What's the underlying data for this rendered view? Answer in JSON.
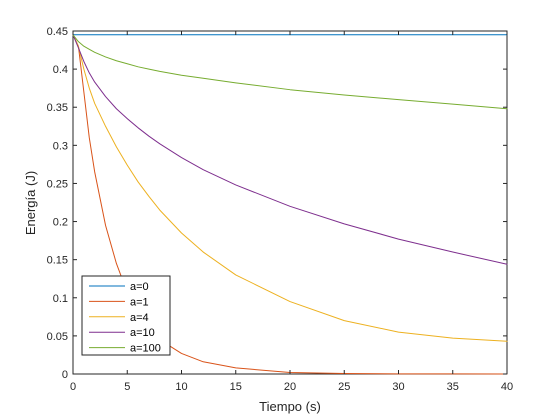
{
  "chart_data": {
    "type": "line",
    "title": "",
    "xlabel": "Tiempo (s)",
    "ylabel": "Energía (J)",
    "xlim": [
      0,
      40
    ],
    "ylim": [
      0,
      0.45
    ],
    "xticks": [
      0,
      5,
      10,
      15,
      20,
      25,
      30,
      35,
      40
    ],
    "xtick_labels": [
      "0",
      "5",
      "10",
      "15",
      "20",
      "25",
      "30",
      "35",
      "40"
    ],
    "yticks": [
      0,
      0.05,
      0.1,
      0.15,
      0.2,
      0.25,
      0.3,
      0.35,
      0.4,
      0.45
    ],
    "ytick_labels": [
      "0",
      "0.05",
      "0.1",
      "0.15",
      "0.2",
      "0.25",
      "0.3",
      "0.35",
      "0.4",
      "0.45"
    ],
    "grid": false,
    "legend_position": "bottom-left",
    "x": [
      0,
      0.5,
      1,
      1.5,
      2,
      3,
      4,
      5,
      6,
      7,
      8,
      10,
      12,
      15,
      20,
      25,
      30,
      35,
      40
    ],
    "series": [
      {
        "name": "a=0",
        "color": "#0072BD",
        "values": [
          0.445,
          0.445,
          0.445,
          0.445,
          0.445,
          0.445,
          0.445,
          0.445,
          0.445,
          0.445,
          0.445,
          0.445,
          0.445,
          0.445,
          0.445,
          0.445,
          0.445,
          0.445,
          0.445
        ]
      },
      {
        "name": "a=1",
        "color": "#D95319",
        "values": [
          0.445,
          0.43,
          0.37,
          0.31,
          0.265,
          0.195,
          0.145,
          0.107,
          0.08,
          0.06,
          0.045,
          0.027,
          0.016,
          0.008,
          0.002,
          0.0007,
          0.0002,
          0.0001,
          0.0
        ]
      },
      {
        "name": "a=4",
        "color": "#EDB120",
        "values": [
          0.445,
          0.43,
          0.4,
          0.375,
          0.355,
          0.325,
          0.298,
          0.274,
          0.252,
          0.233,
          0.215,
          0.185,
          0.16,
          0.13,
          0.095,
          0.07,
          0.055,
          0.047,
          0.043
        ]
      },
      {
        "name": "a=10",
        "color": "#7E2F8E",
        "values": [
          0.445,
          0.428,
          0.41,
          0.395,
          0.383,
          0.364,
          0.348,
          0.335,
          0.323,
          0.312,
          0.302,
          0.284,
          0.268,
          0.248,
          0.22,
          0.197,
          0.177,
          0.16,
          0.144
        ]
      },
      {
        "name": "a=100",
        "color": "#77AC30",
        "values": [
          0.445,
          0.436,
          0.43,
          0.426,
          0.422,
          0.416,
          0.411,
          0.407,
          0.403,
          0.4,
          0.397,
          0.392,
          0.388,
          0.382,
          0.373,
          0.366,
          0.36,
          0.354,
          0.348
        ]
      }
    ]
  }
}
